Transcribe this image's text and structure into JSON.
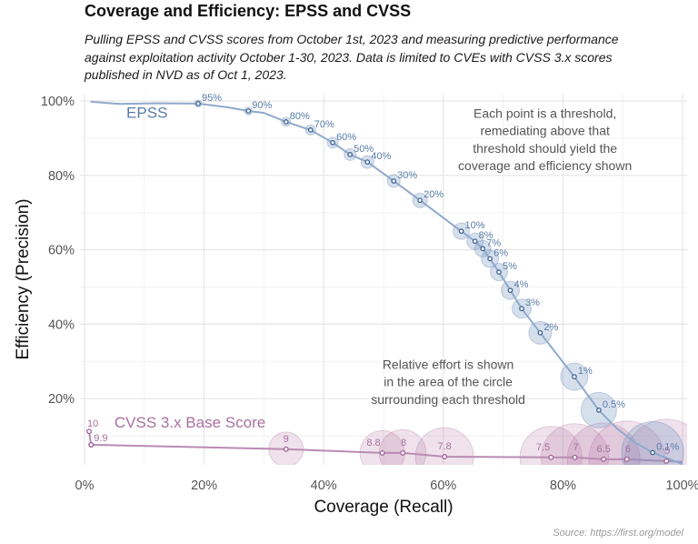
{
  "header": {
    "title": "Coverage and Efficiency: EPSS and CVSS",
    "subtitle_lines": [
      "Pulling EPSS and CVSS scores from October 1st, 2023 and measuring predictive performance",
      "against exploitation activity October 1-30, 2023. Data is limited to CVEs with CVSS 3.x scores",
      "published in NVD as of Oct 1, 2023."
    ]
  },
  "footer": {
    "source": "Source: https://first.org/model"
  },
  "colors": {
    "epss": "#5b7ca8",
    "epss_line": "#8fa9cb",
    "epss_point": "#3f6291",
    "cvss": "#a8709f",
    "cvss_line": "#b98bb2",
    "cvss_point": "#a05f98",
    "grid_major": "#e6e6e6",
    "grid_minor": "#f2f2f2"
  },
  "chart_data": {
    "type": "scatter",
    "title": "Coverage and Efficiency: EPSS and CVSS",
    "xlabel": "Coverage (Recall)",
    "ylabel": "Efficiency (Precision)",
    "xlim": [
      0,
      100
    ],
    "ylim": [
      2,
      100
    ],
    "x_ticks": [
      {
        "value": 0,
        "label": "0%"
      },
      {
        "value": 20,
        "label": "20%"
      },
      {
        "value": 40,
        "label": "40%"
      },
      {
        "value": 60,
        "label": "60%"
      },
      {
        "value": 80,
        "label": "80%"
      },
      {
        "value": 100,
        "label": "100%"
      }
    ],
    "y_ticks": [
      {
        "value": 20,
        "label": "20%"
      },
      {
        "value": 40,
        "label": "40%"
      },
      {
        "value": 60,
        "label": "60%"
      },
      {
        "value": 80,
        "label": "80%"
      },
      {
        "value": 100,
        "label": "100%"
      }
    ],
    "grid": true,
    "bubble_size_meaning": "relative effort (area)",
    "series": [
      {
        "name": "EPSS",
        "label": "EPSS",
        "label_at": [
          7,
          95.5
        ],
        "curve": [
          [
            1,
            99.8
          ],
          [
            6,
            99.2
          ],
          [
            12,
            99.4
          ],
          [
            19,
            99.3
          ],
          [
            24,
            98.3
          ],
          [
            27.4,
            97.3
          ],
          [
            30,
            96.8
          ],
          [
            33.7,
            94.4
          ],
          [
            37.8,
            92.2
          ],
          [
            41.5,
            88.8
          ],
          [
            44.4,
            85.6
          ],
          [
            47.3,
            83.6
          ],
          [
            51.7,
            78.5
          ],
          [
            56.1,
            73.3
          ],
          [
            63,
            65
          ],
          [
            65.3,
            62.3
          ],
          [
            66.6,
            60.3
          ],
          [
            67.8,
            57.6
          ],
          [
            69.3,
            54
          ],
          [
            71.2,
            49.1
          ],
          [
            73.1,
            44.2
          ],
          [
            76.2,
            37.7
          ],
          [
            81.9,
            25.9
          ],
          [
            86,
            16.9
          ],
          [
            89,
            12
          ],
          [
            92,
            8.3
          ],
          [
            95,
            5.5
          ],
          [
            100,
            2.4
          ]
        ],
        "points": [
          {
            "threshold": "95%",
            "coverage": 19.0,
            "efficiency": 99.3,
            "relative_effort": 0.16
          },
          {
            "threshold": "90%",
            "coverage": 27.4,
            "efficiency": 97.3,
            "relative_effort": 0.2
          },
          {
            "threshold": "80%",
            "coverage": 33.7,
            "efficiency": 94.4,
            "relative_effort": 0.25
          },
          {
            "threshold": "70%",
            "coverage": 37.8,
            "efficiency": 92.2,
            "relative_effort": 0.3
          },
          {
            "threshold": "60%",
            "coverage": 41.5,
            "efficiency": 88.8,
            "relative_effort": 0.36
          },
          {
            "threshold": "50%",
            "coverage": 44.4,
            "efficiency": 85.6,
            "relative_effort": 0.42
          },
          {
            "threshold": "40%",
            "coverage": 47.3,
            "efficiency": 83.6,
            "relative_effort": 0.49
          },
          {
            "threshold": "30%",
            "coverage": 51.7,
            "efficiency": 78.5,
            "relative_effort": 0.49
          },
          {
            "threshold": "20%",
            "coverage": 56.1,
            "efficiency": 73.3,
            "relative_effort": 0.64
          },
          {
            "threshold": "10%",
            "coverage": 63.0,
            "efficiency": 65.0,
            "relative_effort": 0.81
          },
          {
            "threshold": "8%",
            "coverage": 65.3,
            "efficiency": 62.3,
            "relative_effort": 0.81
          },
          {
            "threshold": "7%",
            "coverage": 66.6,
            "efficiency": 60.3,
            "relative_effort": 0.81
          },
          {
            "threshold": "6%",
            "coverage": 67.8,
            "efficiency": 57.6,
            "relative_effort": 0.9
          },
          {
            "threshold": "5%",
            "coverage": 69.3,
            "efficiency": 54.0,
            "relative_effort": 0.9
          },
          {
            "threshold": "4%",
            "coverage": 71.2,
            "efficiency": 49.1,
            "relative_effort": 1.0
          },
          {
            "threshold": "3%",
            "coverage": 73.1,
            "efficiency": 44.2,
            "relative_effort": 1.1
          },
          {
            "threshold": "2%",
            "coverage": 76.2,
            "efficiency": 37.7,
            "relative_effort": 1.56
          },
          {
            "threshold": "1%",
            "coverage": 81.9,
            "efficiency": 25.9,
            "relative_effort": 2.25
          },
          {
            "threshold": "0.5%",
            "coverage": 86.0,
            "efficiency": 16.9,
            "relative_effort": 3.8
          },
          {
            "threshold": "0.1%",
            "coverage": 95.0,
            "efficiency": 5.5,
            "relative_effort": 11.6
          }
        ]
      },
      {
        "name": "CVSS 3.x Base Score",
        "label": "CVSS 3.x Base Score",
        "label_at": [
          5,
          12.2
        ],
        "curve": [
          [
            0.76,
            11.2
          ],
          [
            1.1,
            7.6
          ],
          [
            33.7,
            6.4
          ],
          [
            49.8,
            5.4
          ],
          [
            53.2,
            5.4
          ],
          [
            60.2,
            4.4
          ],
          [
            78,
            4.2
          ],
          [
            82,
            4.2
          ],
          [
            86.8,
            3.7
          ],
          [
            90.7,
            3.7
          ],
          [
            97.3,
            3.2
          ],
          [
            100,
            3.0
          ]
        ],
        "points": [
          {
            "threshold": "10",
            "coverage": 0.76,
            "efficiency": 11.2,
            "relative_effort": 0.06
          },
          {
            "threshold": "9.9",
            "coverage": 1.1,
            "efficiency": 7.6,
            "relative_effort": 0.09
          },
          {
            "threshold": "9",
            "coverage": 33.7,
            "efficiency": 6.4,
            "relative_effort": 3.6
          },
          {
            "threshold": "8.8",
            "coverage": 49.8,
            "efficiency": 5.4,
            "relative_effort": 6.0
          },
          {
            "threshold": "8",
            "coverage": 53.2,
            "efficiency": 5.4,
            "relative_effort": 6.6
          },
          {
            "threshold": "7.8",
            "coverage": 60.2,
            "efficiency": 4.4,
            "relative_effort": 10.2
          },
          {
            "threshold": "7.5",
            "coverage": 78.0,
            "efficiency": 4.2,
            "relative_effort": 11.6
          },
          {
            "threshold": "7",
            "coverage": 82.0,
            "efficiency": 4.2,
            "relative_effort": 13.7
          },
          {
            "threshold": "6.5",
            "coverage": 86.8,
            "efficiency": 3.7,
            "relative_effort": 16.0
          },
          {
            "threshold": "6",
            "coverage": 90.7,
            "efficiency": 3.7,
            "relative_effort": 17.6
          },
          {
            "threshold": "5",
            "coverage": 97.3,
            "efficiency": 3.2,
            "relative_effort": 21.2
          }
        ]
      }
    ],
    "annotations": [
      {
        "name": "threshold-note",
        "lines": [
          "Each point is a threshold,",
          "remediating above that",
          "threshold should yield the",
          "coverage and efficiency shown"
        ],
        "at": [
          77.0,
          95.5
        ]
      },
      {
        "name": "effort-note",
        "lines": [
          "Relative effort is shown",
          "in the area of the circle",
          "surrounding each threshold"
        ],
        "at": [
          60.8,
          28.0
        ]
      }
    ],
    "source": "Source: https://first.org/model"
  }
}
